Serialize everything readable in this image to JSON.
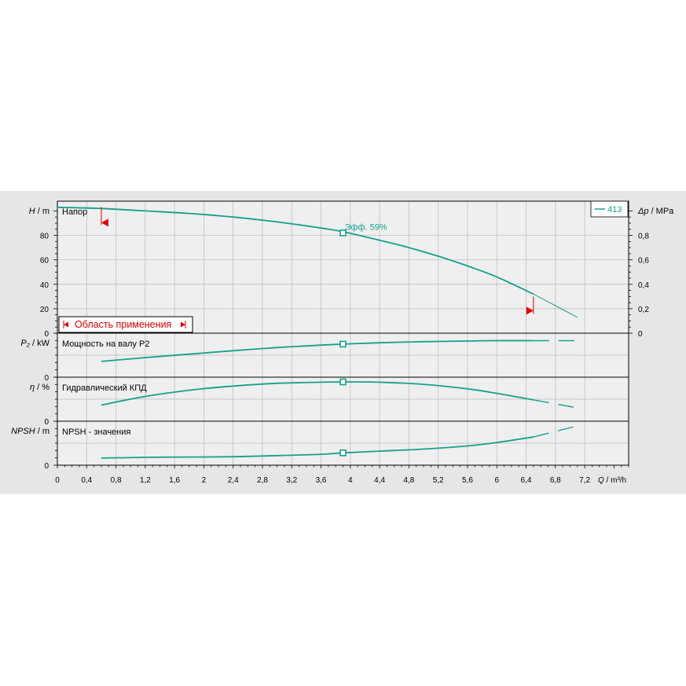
{
  "colors": {
    "panel_bg": "#e6e6e6",
    "plot_bg": "#efefef",
    "curve": "#17a08a",
    "limit_marker": "#e00000"
  },
  "legend": {
    "label": "413"
  },
  "application_range": {
    "label": "Область применения"
  },
  "chart_data": [
    {
      "type": "line",
      "name": "head",
      "panel_title": "Напор",
      "ylabel_symbol": "H",
      "ylabel_unit": "m",
      "ylabel": "H / m",
      "y2label_symbol": "Δp",
      "y2label_unit": "MPa",
      "y2label": "Δp / MPa",
      "ylim": [
        0,
        108
      ],
      "yticks": [
        0,
        20,
        40,
        60,
        80
      ],
      "y2ticks": [
        "0",
        "0,2",
        "0,4",
        "0,6",
        "0,8"
      ],
      "y2tick_values": [
        0,
        20,
        40,
        60,
        80
      ],
      "series": [
        {
          "name": "413",
          "x": [
            0,
            0.6,
            1.2,
            1.8,
            2.4,
            3.0,
            3.6,
            3.9,
            4.4,
            4.8,
            5.2,
            5.6,
            6.0,
            6.5,
            7.1
          ],
          "y": [
            103,
            102,
            100,
            98,
            95,
            91,
            86,
            83,
            76,
            70,
            63,
            55,
            46,
            32,
            13
          ],
          "solid_until_x": 6.5
        }
      ],
      "operating_point": {
        "x": 3.9,
        "y": 82,
        "label": "Эфф.  59%"
      },
      "range_markers": [
        {
          "x": 0.6,
          "y": 102
        },
        {
          "x": 6.5,
          "y": 30
        }
      ]
    },
    {
      "type": "line",
      "name": "power",
      "panel_title": "Мощность на валу P2",
      "ylabel": "P₂ / kW",
      "yticks": [
        0
      ],
      "series": [
        {
          "x": [
            0.6,
            1.2,
            1.8,
            2.4,
            3.0,
            3.6,
            3.9,
            4.4,
            5.0,
            5.6,
            6.0,
            6.5,
            7.1
          ],
          "y": [
            0.32,
            0.43,
            0.53,
            0.63,
            0.72,
            0.79,
            0.82,
            0.86,
            0.89,
            0.91,
            0.92,
            0.92,
            0.92
          ],
          "solid_until_x": 6.5
        }
      ],
      "operating_point": {
        "x": 3.9,
        "y": 0.82
      }
    },
    {
      "type": "line",
      "name": "efficiency",
      "panel_title": "Гидравлический КПД",
      "ylabel": "η / %",
      "yticks": [
        0
      ],
      "series": [
        {
          "x": [
            0.6,
            1.2,
            1.8,
            2.4,
            3.0,
            3.6,
            3.9,
            4.4,
            5.0,
            5.6,
            6.0,
            6.5,
            7.1
          ],
          "y": [
            0.33,
            0.58,
            0.76,
            0.88,
            0.96,
            0.99,
            1.0,
            0.99,
            0.93,
            0.8,
            0.67,
            0.48,
            0.25
          ],
          "solid_until_x": 6.5
        }
      ],
      "operating_point": {
        "x": 3.9,
        "y": 1.0
      }
    },
    {
      "type": "line",
      "name": "npsh",
      "panel_title": "NPSH - значения",
      "ylabel": "NPSH / m",
      "yticks": [
        0
      ],
      "series": [
        {
          "x": [
            0.6,
            1.2,
            1.8,
            2.4,
            3.0,
            3.6,
            3.9,
            4.4,
            5.0,
            5.6,
            6.0,
            6.5,
            7.1
          ],
          "y": [
            0.07,
            0.09,
            0.1,
            0.11,
            0.14,
            0.18,
            0.22,
            0.27,
            0.33,
            0.42,
            0.52,
            0.68,
            1.0
          ],
          "solid_until_x": 6.5
        }
      ],
      "operating_point": {
        "x": 3.9,
        "y": 0.22
      }
    }
  ],
  "x_axis": {
    "label_symbol": "Q",
    "label_unit": "m³/h",
    "label": "Q / m³/h",
    "xlim": [
      0,
      7.8
    ],
    "ticks": [
      0,
      0.4,
      0.8,
      1.2,
      1.6,
      2,
      2.4,
      2.8,
      3.2,
      3.6,
      4,
      4.4,
      4.8,
      5.2,
      5.6,
      6,
      6.4,
      6.8,
      7.2
    ],
    "tick_labels": [
      "0",
      "0,4",
      "0,8",
      "1,2",
      "1,6",
      "2",
      "2,4",
      "2,8",
      "3,2",
      "3,6",
      "4",
      "4,4",
      "4,8",
      "5,2",
      "5,6",
      "6",
      "6,4",
      "6,8",
      "7,2"
    ]
  }
}
